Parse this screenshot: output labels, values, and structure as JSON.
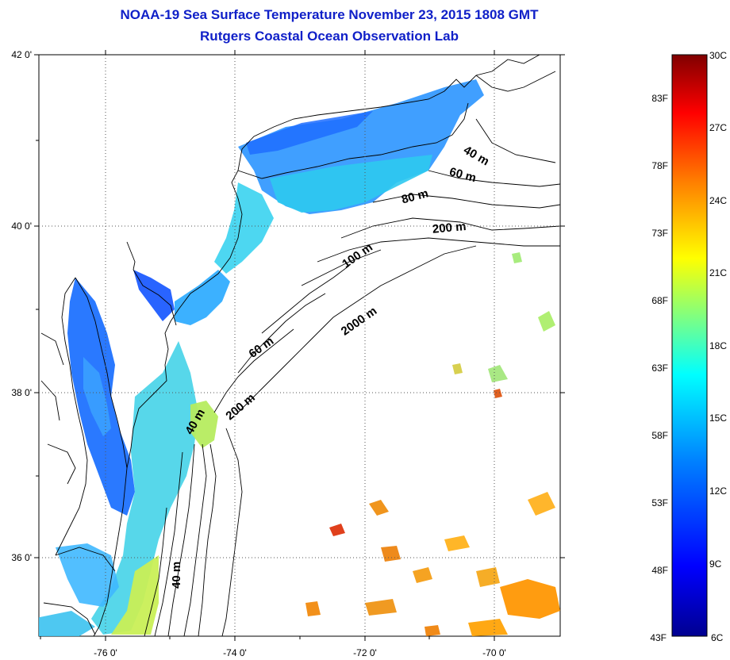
{
  "header": {
    "title": "NOAA-19 Sea Surface Temperature November 23, 2015 1808 GMT",
    "subtitle": "Rutgers Coastal Ocean Observation Lab"
  },
  "map": {
    "lon_labels": [
      "-76 0'",
      "-74 0'",
      "-72 0'",
      "-70 0'"
    ],
    "lat_labels": [
      "42 0'",
      "40 0'",
      "38 0'",
      "36 0'"
    ],
    "contour_labels": [
      "40 m",
      "60 m",
      "80 m",
      "200 m",
      "100 m",
      "2000 m",
      "60 m",
      "200 m",
      "40 m",
      "40 m"
    ]
  },
  "colorbar": {
    "celsius_labels": [
      "30C",
      "27C",
      "24C",
      "21C",
      "18C",
      "15C",
      "12C",
      "9C",
      "6C"
    ],
    "fahrenheit_labels": [
      "83F",
      "78F",
      "73F",
      "68F",
      "63F",
      "58F",
      "53F",
      "48F",
      "43F"
    ],
    "colors": [
      "#000090",
      "#0000ff",
      "#0080ff",
      "#00ffff",
      "#80ff80",
      "#ffff00",
      "#ff8000",
      "#ff0000",
      "#800000"
    ]
  }
}
